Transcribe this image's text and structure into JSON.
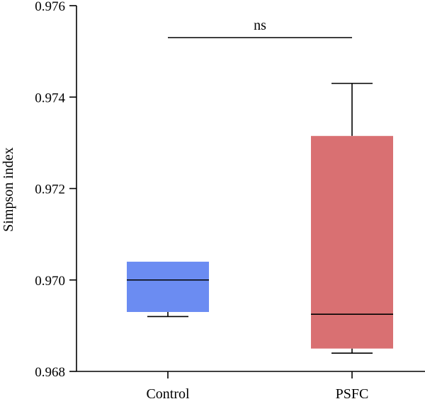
{
  "chart_data": {
    "type": "box",
    "title": "",
    "xlabel": "",
    "ylabel": "Simpson index",
    "ylim": [
      0.968,
      0.976
    ],
    "yticks": [
      0.968,
      0.97,
      0.972,
      0.974,
      0.976
    ],
    "ytick_labels": [
      "0.968",
      "0.970",
      "0.972",
      "0.974",
      "0.976"
    ],
    "categories": [
      "Control",
      "PSFC"
    ],
    "boxes": [
      {
        "category": "Control",
        "whisker_low": 0.9692,
        "q1": 0.9693,
        "median": 0.97,
        "q3": 0.9704,
        "whisker_high": 0.9704,
        "color": "#6b8cf2"
      },
      {
        "category": "PSFC",
        "whisker_low": 0.9684,
        "q1": 0.9685,
        "median": 0.96925,
        "q3": 0.97315,
        "whisker_high": 0.9743,
        "color": "#d97072"
      }
    ],
    "significance": {
      "label": "ns",
      "between": [
        "Control",
        "PSFC"
      ],
      "y": 0.9753
    },
    "grid": false,
    "legend": "none"
  }
}
